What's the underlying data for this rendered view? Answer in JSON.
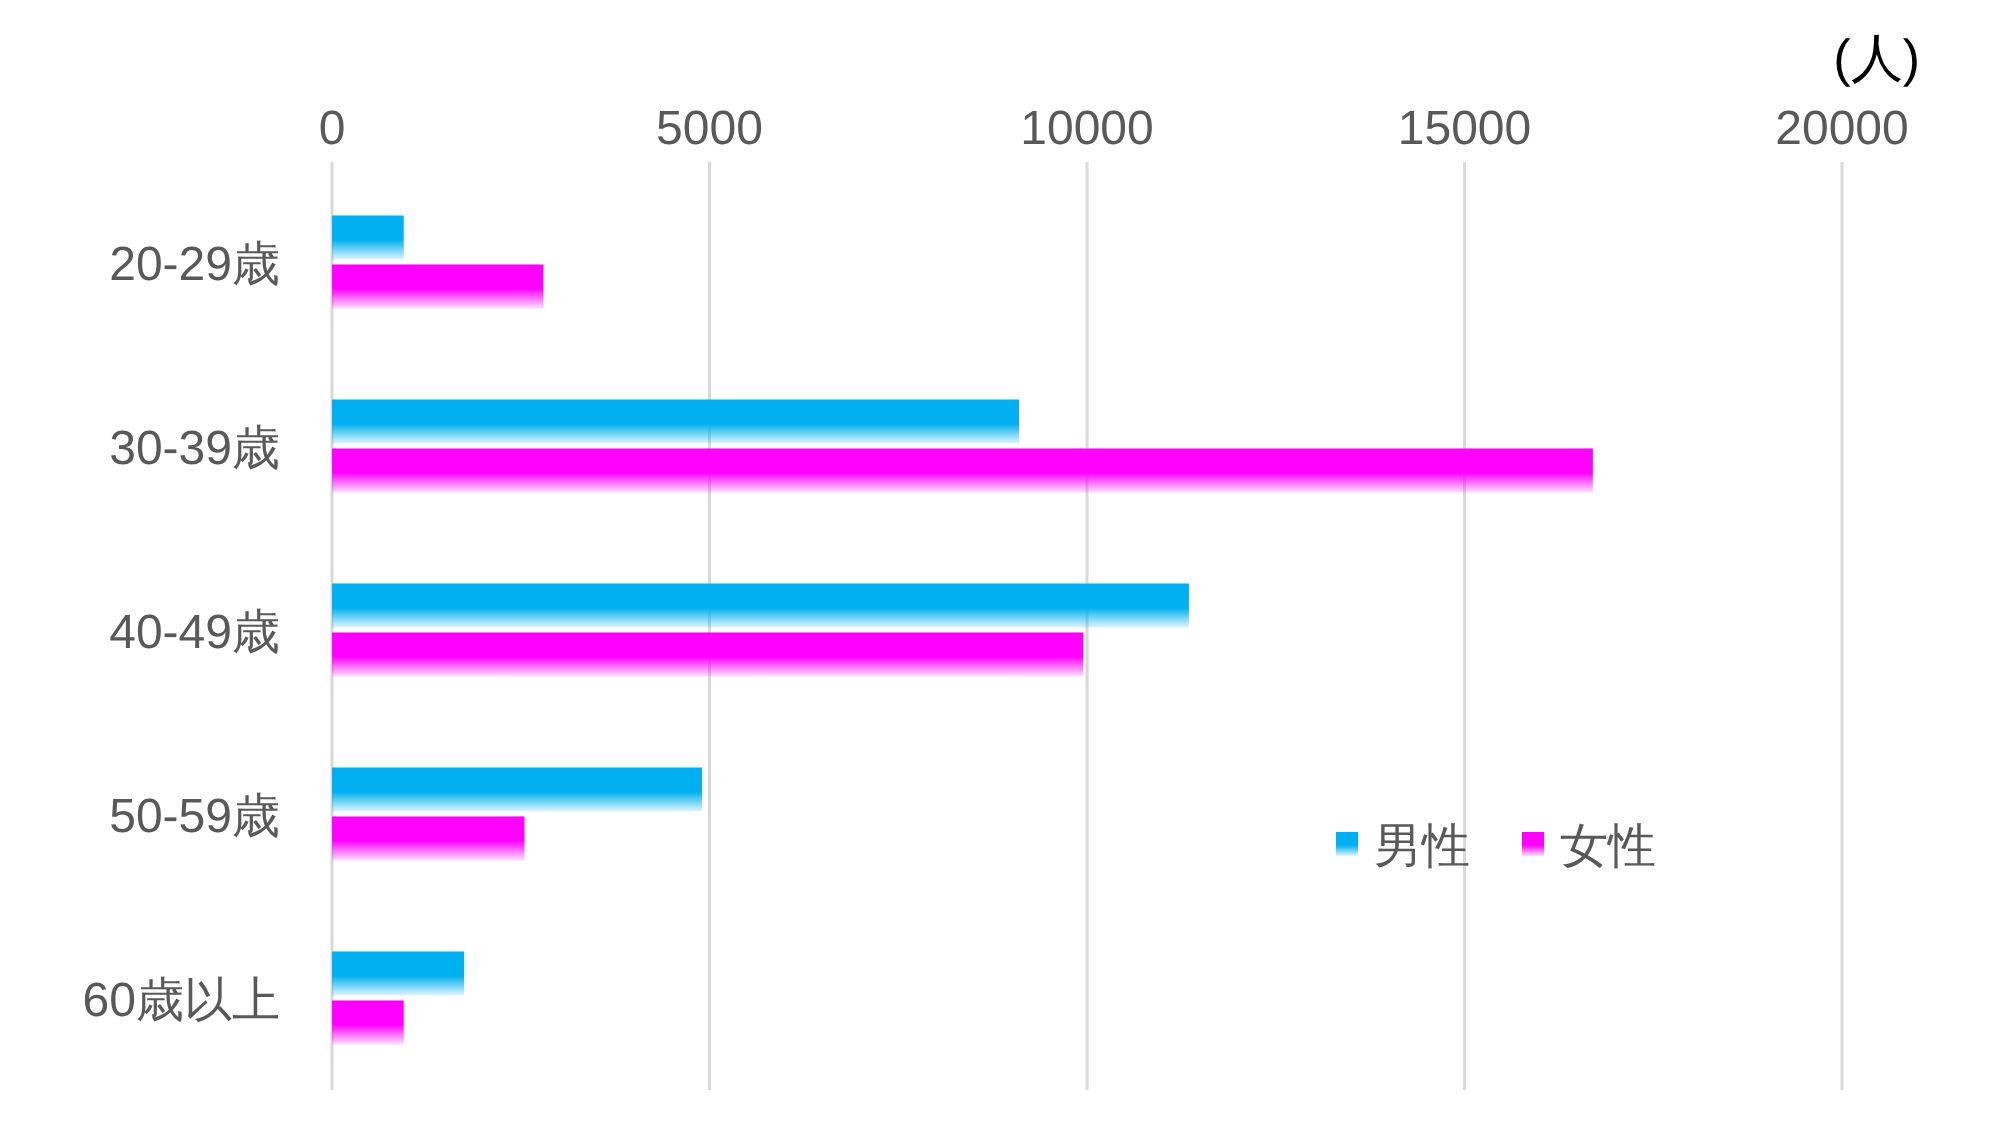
{
  "chart_data": {
    "type": "bar",
    "orientation": "horizontal",
    "categories": [
      "20-29歳",
      "30-39歳",
      "40-49歳",
      "50-59歳",
      "60歳以上"
    ],
    "series": [
      {
        "name": "男性",
        "color": "#00b0f0",
        "values": [
          950,
          9100,
          11350,
          4900,
          1750
        ]
      },
      {
        "name": "女性",
        "color": "#ff00ff",
        "values": [
          2800,
          16700,
          9950,
          2550,
          950
        ]
      }
    ],
    "xlabel": "(人)",
    "xlim": [
      0,
      20000
    ],
    "xticks": [
      0,
      5000,
      10000,
      15000,
      20000
    ],
    "grid": "x",
    "legend": "right"
  }
}
